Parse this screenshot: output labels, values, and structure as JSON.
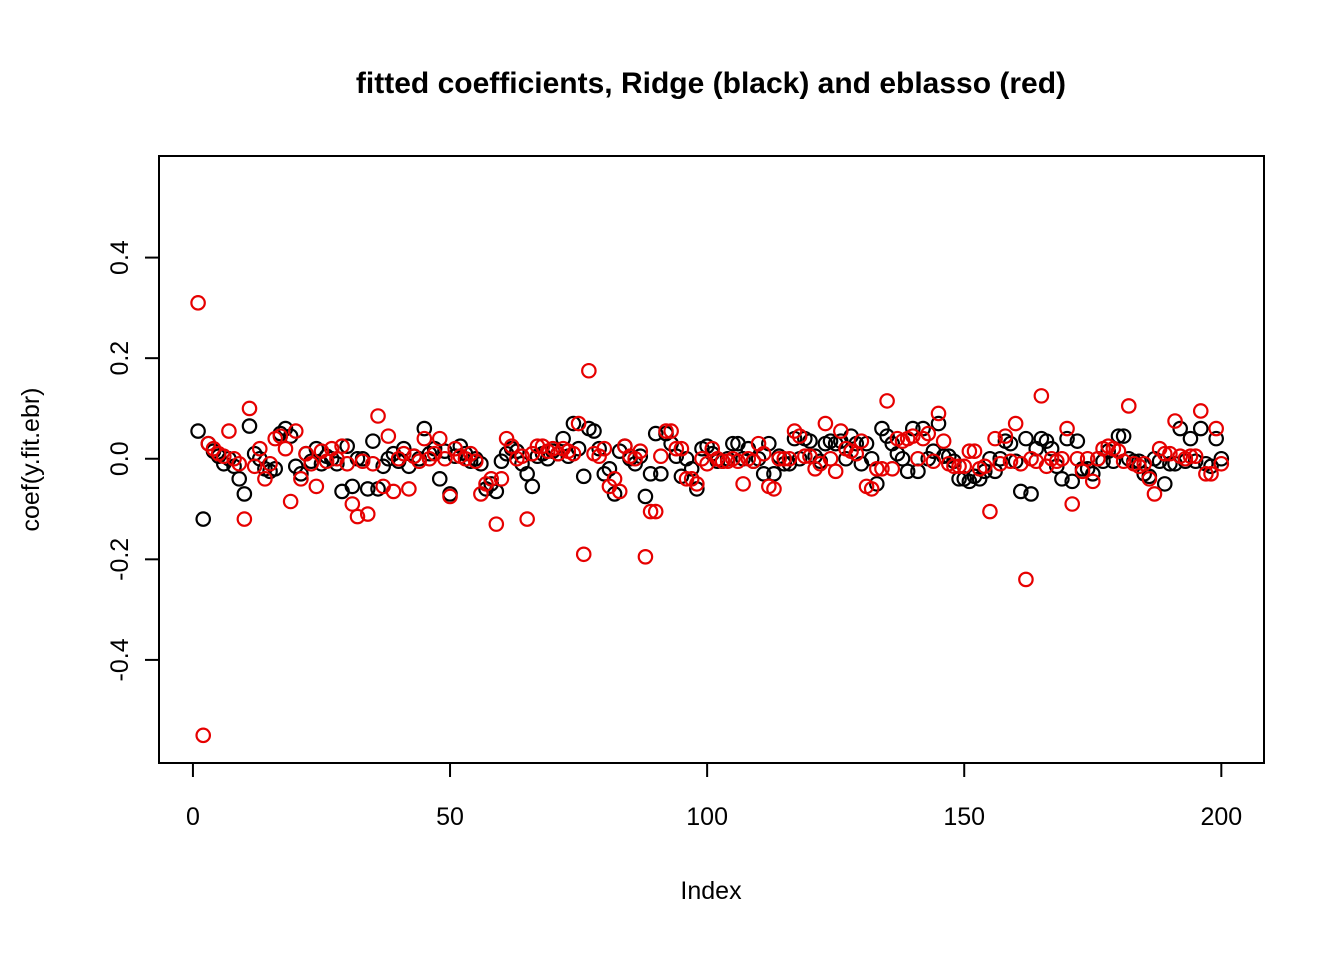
{
  "title": "fitted coefficients, Ridge (black) and eblasso (red)",
  "colors": {
    "background": "#ffffff",
    "foreground": "#000000",
    "ridge_black": "#000000",
    "eblasso_red": "#e60000"
  },
  "chart_data": {
    "type": "scatter",
    "title": "fitted coefficients, Ridge (black) and eblasso (red)",
    "xlabel": "Index",
    "ylabel": "coef(y.fit.ebr)",
    "x_ticks": [
      0,
      50,
      100,
      150,
      200
    ],
    "y_ticks": [
      -0.4,
      -0.2,
      0.0,
      0.2,
      0.4
    ],
    "xlim": [
      -6.6,
      208.3
    ],
    "ylim": [
      -0.605,
      0.602
    ],
    "x_start": 1,
    "grid": false,
    "legend_position": "none (colors named in title)",
    "marker": "open-circle",
    "series": [
      {
        "name": "Ridge",
        "color": "#000000",
        "values": [
          0.055,
          -0.12,
          0.03,
          0.015,
          0.005,
          -0.01,
          0.0,
          -0.015,
          -0.04,
          -0.07,
          0.065,
          0.01,
          0.0,
          -0.02,
          -0.025,
          -0.02,
          0.05,
          0.06,
          0.045,
          -0.015,
          -0.03,
          0.01,
          -0.005,
          0.02,
          -0.01,
          0.005,
          0.0,
          -0.01,
          -0.065,
          0.025,
          -0.055,
          0.0,
          0.0,
          -0.06,
          0.035,
          -0.06,
          -0.015,
          0.0,
          0.01,
          -0.005,
          0.02,
          -0.015,
          0.005,
          0.0,
          0.06,
          0.01,
          0.02,
          -0.04,
          0.015,
          -0.07,
          0.005,
          0.025,
          0.01,
          -0.005,
          0.0,
          -0.01,
          -0.06,
          -0.05,
          -0.065,
          -0.005,
          0.01,
          0.02,
          0.015,
          -0.01,
          -0.03,
          -0.055,
          0.005,
          0.01,
          0.0,
          0.015,
          0.01,
          0.04,
          0.005,
          0.07,
          0.02,
          -0.035,
          0.06,
          0.055,
          0.02,
          -0.03,
          -0.02,
          -0.07,
          0.015,
          0.025,
          0.0,
          -0.01,
          0.005,
          -0.075,
          -0.03,
          0.05,
          -0.03,
          0.05,
          0.03,
          0.005,
          -0.035,
          0.0,
          -0.02,
          -0.06,
          0.02,
          0.025,
          0.01,
          -0.005,
          -0.005,
          0.0,
          0.03,
          0.03,
          0.0,
          0.02,
          -0.005,
          0.0,
          -0.03,
          0.03,
          -0.03,
          0.005,
          -0.01,
          -0.01,
          0.04,
          0.0,
          0.04,
          0.035,
          0.005,
          -0.005,
          0.03,
          0.035,
          0.03,
          0.035,
          0.0,
          0.045,
          0.03,
          -0.01,
          0.03,
          0.0,
          -0.05,
          0.06,
          0.045,
          0.03,
          0.01,
          0.0,
          -0.025,
          0.06,
          -0.025,
          0.06,
          0.0,
          0.015,
          0.07,
          0.005,
          0.005,
          -0.005,
          -0.04,
          -0.04,
          -0.045,
          -0.035,
          -0.04,
          -0.025,
          0.0,
          -0.025,
          0.0,
          0.035,
          0.03,
          -0.005,
          -0.065,
          0.04,
          -0.07,
          0.02,
          0.04,
          0.035,
          0.02,
          -0.015,
          -0.04,
          0.04,
          -0.045,
          0.035,
          -0.02,
          -0.02,
          -0.03,
          0.0,
          -0.005,
          0.015,
          -0.005,
          0.045,
          0.045,
          0.0,
          -0.005,
          -0.005,
          -0.03,
          -0.035,
          0.0,
          -0.005,
          -0.05,
          -0.01,
          -0.01,
          0.06,
          -0.005,
          0.04,
          -0.005,
          0.06,
          -0.01,
          -0.015,
          0.04,
          0.0
        ]
      },
      {
        "name": "eblasso",
        "color": "#e60000",
        "values": [
          0.31,
          -0.55,
          0.03,
          0.02,
          0.01,
          0.005,
          0.055,
          0.0,
          -0.01,
          -0.12,
          0.1,
          -0.015,
          0.02,
          -0.04,
          -0.01,
          0.04,
          0.045,
          0.02,
          -0.085,
          0.055,
          -0.04,
          0.01,
          -0.01,
          -0.055,
          0.015,
          -0.005,
          0.02,
          0.0,
          0.025,
          -0.01,
          -0.09,
          -0.115,
          -0.005,
          -0.11,
          -0.01,
          0.085,
          -0.055,
          0.045,
          -0.065,
          0.0,
          0.01,
          -0.06,
          0.005,
          -0.005,
          0.04,
          0.0,
          0.01,
          0.04,
          0.0,
          -0.075,
          0.02,
          0.005,
          0.0,
          0.01,
          -0.005,
          -0.07,
          -0.05,
          -0.04,
          -0.13,
          -0.04,
          0.04,
          0.025,
          0.0,
          0.005,
          -0.12,
          0.01,
          0.025,
          0.025,
          0.015,
          0.02,
          0.01,
          0.02,
          0.015,
          0.01,
          0.07,
          -0.19,
          0.175,
          0.01,
          0.005,
          0.02,
          -0.055,
          -0.04,
          -0.065,
          0.025,
          0.005,
          0.0,
          0.015,
          -0.195,
          -0.105,
          -0.105,
          0.005,
          0.055,
          0.055,
          0.02,
          0.02,
          -0.04,
          -0.04,
          -0.05,
          0.0,
          -0.01,
          0.02,
          0.0,
          -0.005,
          -0.005,
          0.0,
          -0.005,
          -0.05,
          0.0,
          -0.005,
          0.03,
          0.01,
          -0.055,
          -0.06,
          0.0,
          0.0,
          0.0,
          0.055,
          0.045,
          0.005,
          0.005,
          -0.02,
          -0.01,
          0.07,
          0.0,
          -0.025,
          0.055,
          0.02,
          0.015,
          0.01,
          0.035,
          -0.055,
          -0.06,
          -0.02,
          -0.02,
          0.115,
          -0.02,
          0.04,
          0.035,
          0.04,
          0.045,
          0.0,
          0.04,
          0.05,
          -0.005,
          0.09,
          0.035,
          -0.01,
          -0.015,
          -0.015,
          -0.015,
          0.015,
          0.015,
          -0.02,
          -0.015,
          -0.105,
          0.04,
          -0.01,
          0.045,
          -0.005,
          0.07,
          -0.01,
          -0.24,
          0.0,
          -0.005,
          0.125,
          -0.015,
          0.0,
          -0.005,
          0.0,
          0.06,
          -0.09,
          0.0,
          -0.025,
          0.0,
          -0.045,
          0.0,
          0.02,
          0.025,
          0.02,
          0.015,
          -0.005,
          0.105,
          -0.01,
          -0.015,
          -0.01,
          -0.04,
          -0.07,
          0.02,
          0.01,
          0.01,
          0.075,
          0.005,
          0.0,
          0.005,
          0.005,
          0.095,
          -0.03,
          -0.03,
          0.06,
          -0.01
        ]
      }
    ]
  }
}
